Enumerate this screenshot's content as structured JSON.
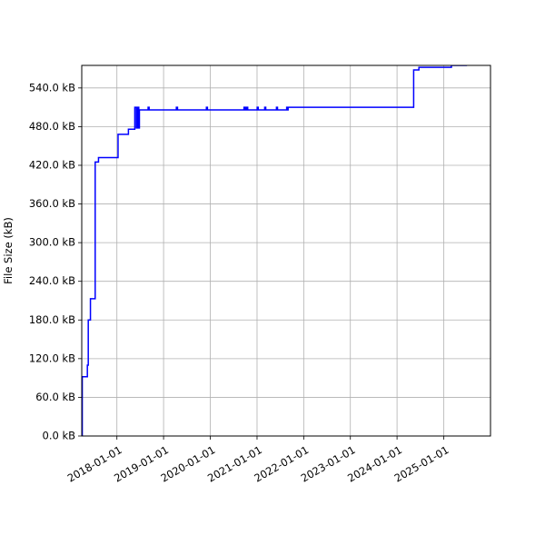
{
  "chart_data": {
    "type": "line",
    "title": "",
    "xlabel": "",
    "ylabel": "File Size (kB)",
    "grid": true,
    "line_color": "#0000ff",
    "xlim": [
      "2017-04-01",
      "2026-01-01"
    ],
    "ylim": [
      0,
      575
    ],
    "x_ticks": [
      "2018-01-01",
      "2019-01-01",
      "2020-01-01",
      "2021-01-01",
      "2022-01-01",
      "2023-01-01",
      "2024-01-01",
      "2025-01-01"
    ],
    "y_ticks": [
      0,
      60,
      120,
      180,
      240,
      300,
      360,
      420,
      480,
      540
    ],
    "y_tick_labels": [
      "0.0 kB",
      "60.0 kB",
      "120.0 kB",
      "180.0 kB",
      "240.0 kB",
      "300.0 kB",
      "360.0 kB",
      "420.0 kB",
      "480.0 kB",
      "540.0 kB"
    ],
    "series": [
      {
        "color": "#0000ff",
        "x": [
          "2017-04-01",
          "2017-04-05",
          "2017-04-08",
          "2017-05-10",
          "2017-05-15",
          "2017-05-22",
          "2017-06-05",
          "2017-06-08",
          "2017-07-10",
          "2017-07-15",
          "2017-08-05",
          "2017-08-10",
          "2017-09-20",
          "2018-01-05",
          "2018-01-10",
          "2018-02-20",
          "2018-03-10",
          "2018-04-01",
          "2018-05-20",
          "2018-05-21",
          "2018-06-01",
          "2018-06-02",
          "2018-06-10",
          "2018-06-11",
          "2018-06-20",
          "2018-06-21",
          "2018-06-25",
          "2018-06-26",
          "2018-09-01",
          "2018-09-02",
          "2018-09-10",
          "2019-04-10",
          "2019-04-11",
          "2019-04-20",
          "2019-12-01",
          "2019-12-02",
          "2019-12-10",
          "2020-09-20",
          "2020-09-21",
          "2020-10-01",
          "2020-10-10",
          "2020-10-11",
          "2020-10-20",
          "2021-01-01",
          "2021-01-02",
          "2021-01-10",
          "2021-03-01",
          "2021-03-02",
          "2021-03-10",
          "2021-06-01",
          "2021-06-02",
          "2021-06-10",
          "2021-08-20",
          "2021-08-21",
          "2021-08-30",
          "2021-09-01",
          "2024-05-01",
          "2024-05-10",
          "2024-06-01",
          "2024-06-20",
          "2025-02-01",
          "2025-03-01",
          "2025-07-01"
        ],
        "y": [
          0,
          92,
          92,
          92,
          110,
          180,
          180,
          213,
          213,
          425,
          425,
          432,
          432,
          432,
          468,
          468,
          468,
          476,
          476,
          510,
          510,
          478,
          478,
          510,
          510,
          478,
          478,
          506,
          506,
          510,
          506,
          506,
          510,
          506,
          506,
          510,
          506,
          506,
          510,
          506,
          506,
          510,
          506,
          506,
          510,
          506,
          506,
          510,
          506,
          506,
          510,
          506,
          506,
          510,
          506,
          510,
          510,
          568,
          568,
          572,
          572,
          575,
          575
        ]
      }
    ]
  }
}
